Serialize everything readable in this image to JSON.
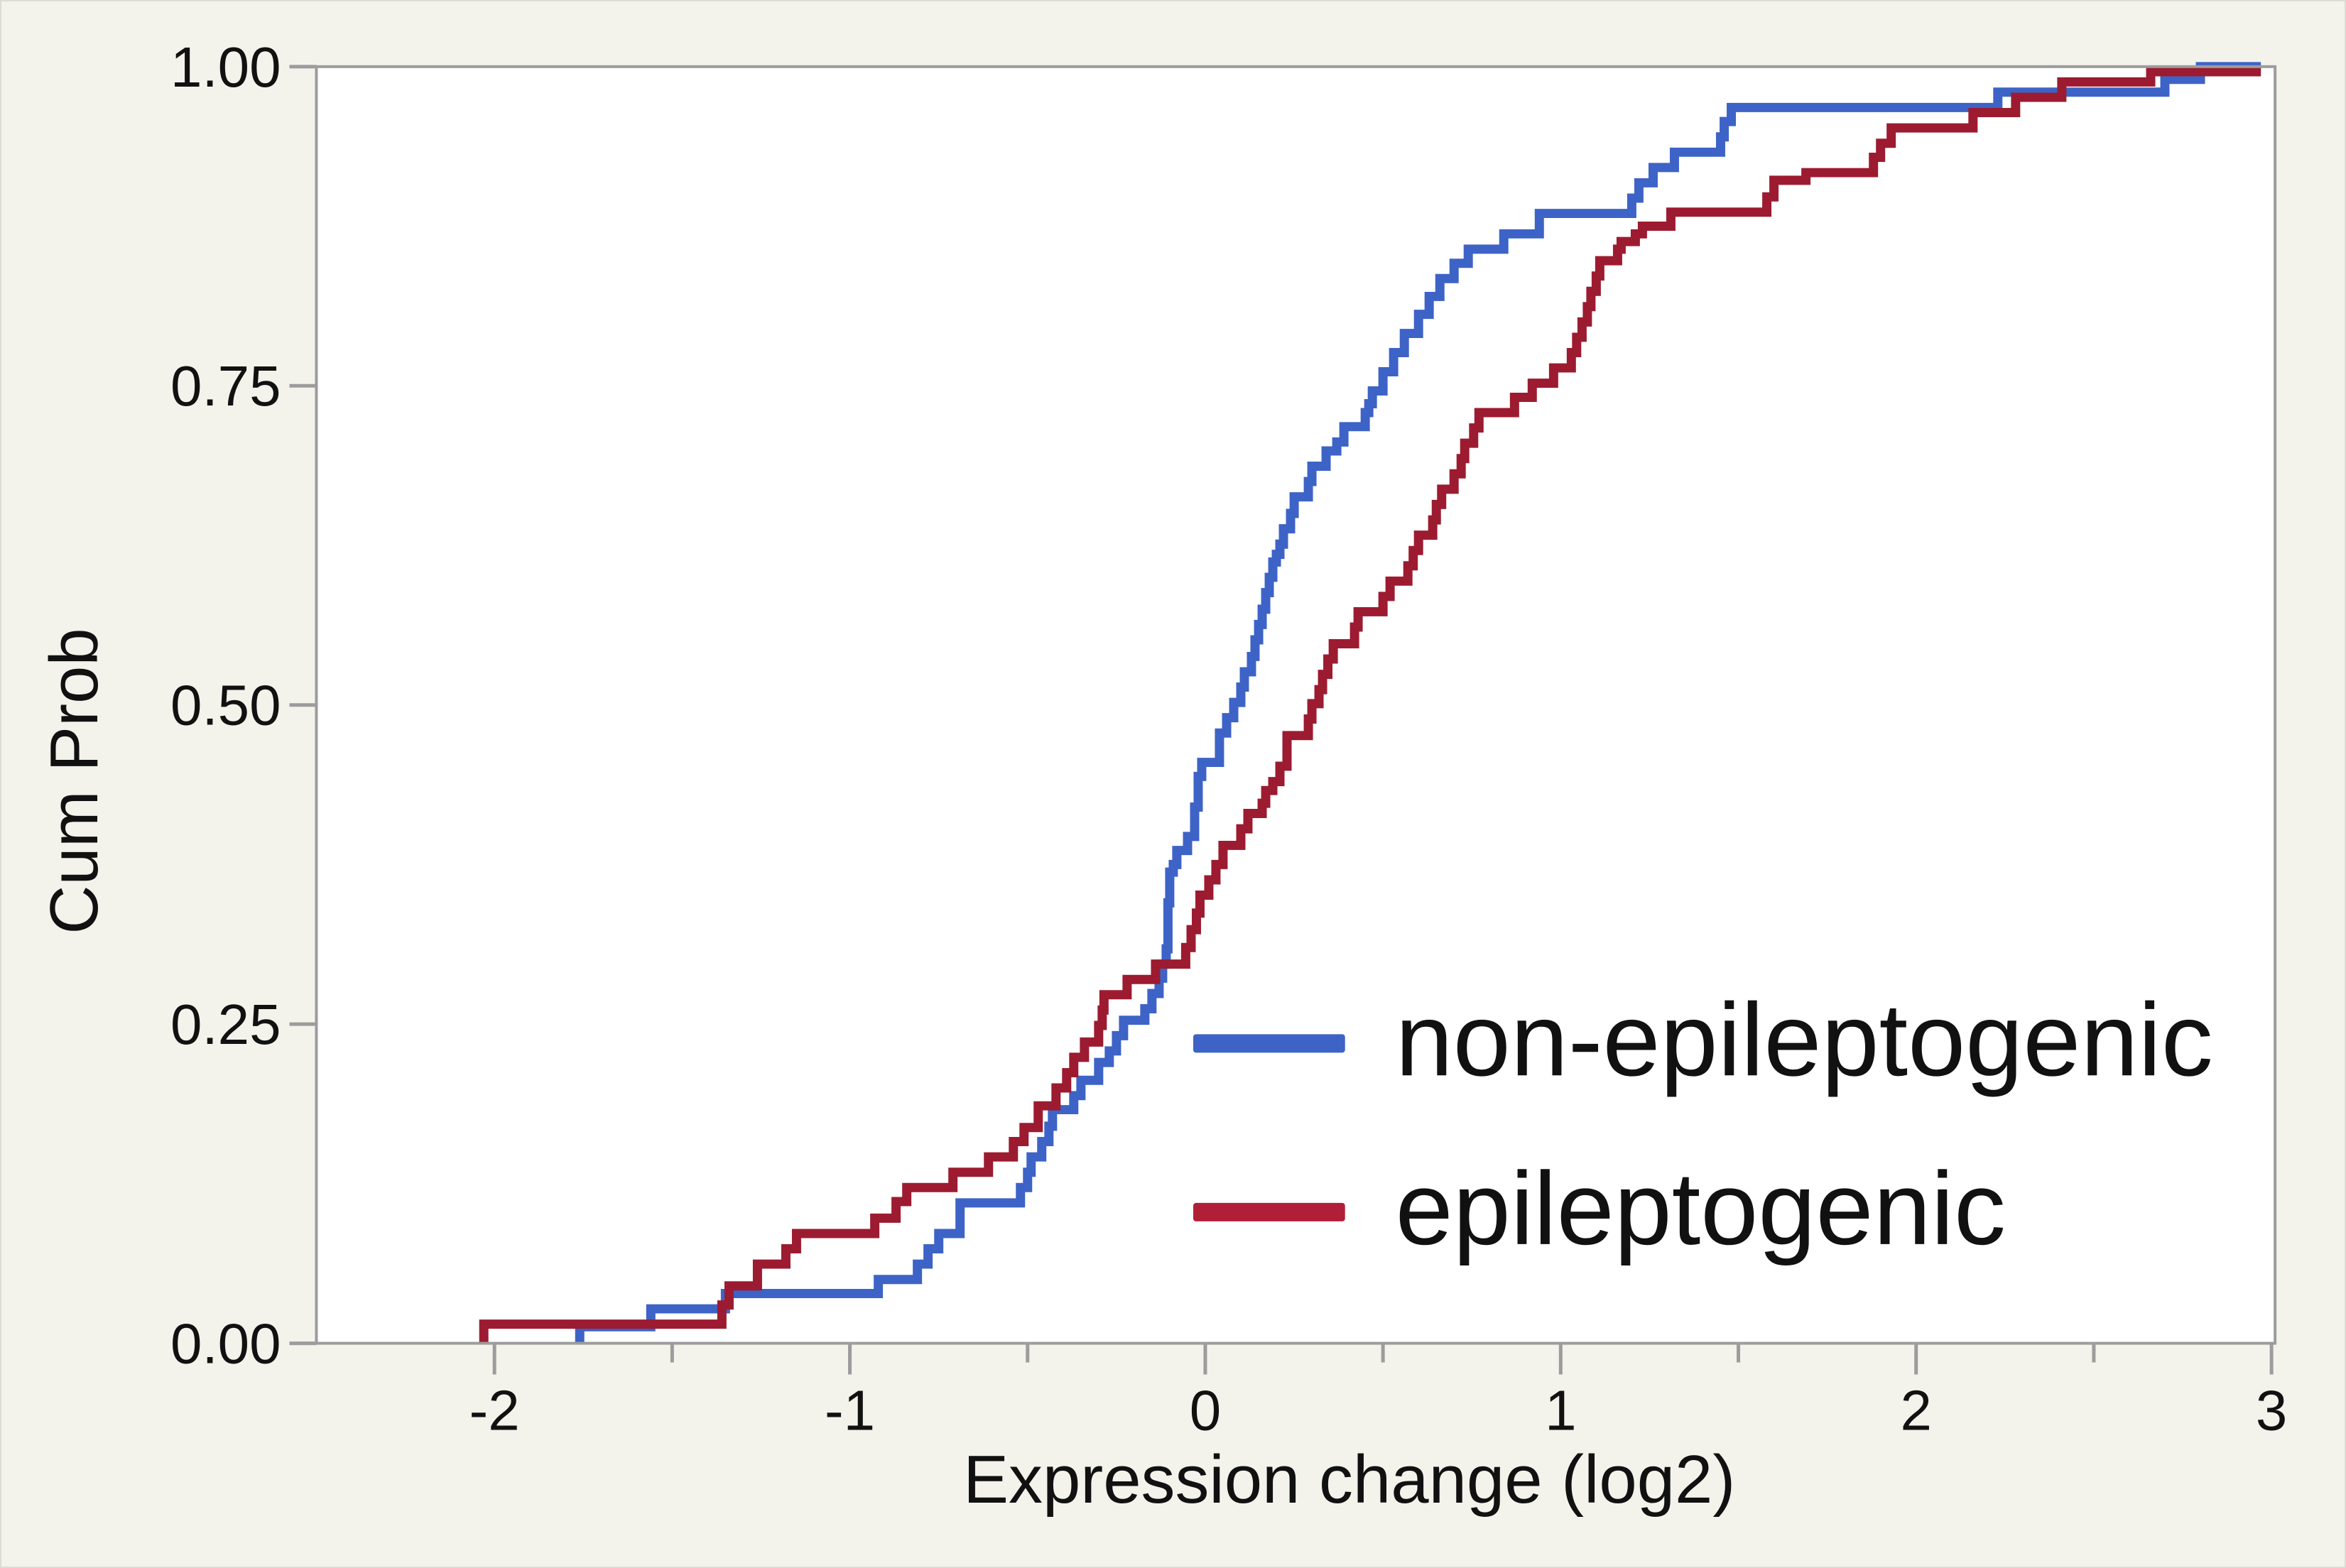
{
  "window": {
    "background": "#F3F3EC",
    "plot_background": "#FFFFFF",
    "frame_color": "#9C9C9C",
    "text_color": "#111111"
  },
  "chart_data": {
    "type": "line",
    "subtype": "step_ecdf",
    "title": "",
    "xlabel": "Expression change (log2)",
    "ylabel": "Cum Prob",
    "xlim": [
      -2.5,
      3.01
    ],
    "ylim": [
      0,
      1
    ],
    "grid": false,
    "legend_position": "inside-lower-right",
    "x_major_ticks": {
      "values": [
        -2,
        -1,
        0,
        1,
        2,
        3
      ],
      "labels": [
        "-2",
        "-1",
        "0",
        "1",
        "2",
        "3"
      ]
    },
    "x_minor_ticks": [
      -1.5,
      -0.5,
      0.5,
      1.5,
      2.5
    ],
    "y_ticks": {
      "values": [
        0,
        0.25,
        0.5,
        0.75,
        1
      ],
      "labels": [
        "0.00",
        "0.25",
        "0.50",
        "0.75",
        "1.00"
      ]
    },
    "legend": [
      {
        "label": "non-epileptogenic",
        "color": "#3D63C7"
      },
      {
        "label": "epileptogenic",
        "color": "#B01F37"
      }
    ],
    "series": [
      {
        "name": "non-epileptogenic",
        "color": "#3D63C7",
        "points": [
          [
            -1.76,
            0.013
          ],
          [
            -1.56,
            0.027
          ],
          [
            -1.35,
            0.039
          ],
          [
            -0.92,
            0.05
          ],
          [
            -0.81,
            0.062
          ],
          [
            -0.78,
            0.074
          ],
          [
            -0.75,
            0.086
          ],
          [
            -0.69,
            0.11
          ],
          [
            -0.52,
            0.122
          ],
          [
            -0.5,
            0.134
          ],
          [
            -0.49,
            0.146
          ],
          [
            -0.46,
            0.158
          ],
          [
            -0.44,
            0.17
          ],
          [
            -0.43,
            0.183
          ],
          [
            -0.37,
            0.194
          ],
          [
            -0.35,
            0.206
          ],
          [
            -0.3,
            0.22
          ],
          [
            -0.27,
            0.229
          ],
          [
            -0.25,
            0.241
          ],
          [
            -0.23,
            0.253
          ],
          [
            -0.17,
            0.262
          ],
          [
            -0.15,
            0.274
          ],
          [
            -0.13,
            0.286
          ],
          [
            -0.12,
            0.297
          ],
          [
            -0.11,
            0.309
          ],
          [
            -0.105,
            0.345
          ],
          [
            -0.1,
            0.369
          ],
          [
            -0.09,
            0.375
          ],
          [
            -0.08,
            0.386
          ],
          [
            -0.05,
            0.397
          ],
          [
            -0.03,
            0.42
          ],
          [
            -0.02,
            0.444
          ],
          [
            -0.01,
            0.455
          ],
          [
            0.04,
            0.478
          ],
          [
            0.06,
            0.49
          ],
          [
            0.08,
            0.502
          ],
          [
            0.1,
            0.514
          ],
          [
            0.11,
            0.526
          ],
          [
            0.13,
            0.538
          ],
          [
            0.14,
            0.551
          ],
          [
            0.15,
            0.563
          ],
          [
            0.16,
            0.575
          ],
          [
            0.17,
            0.588
          ],
          [
            0.18,
            0.6
          ],
          [
            0.19,
            0.612
          ],
          [
            0.2,
            0.618
          ],
          [
            0.21,
            0.626
          ],
          [
            0.22,
            0.638
          ],
          [
            0.24,
            0.65
          ],
          [
            0.25,
            0.663
          ],
          [
            0.29,
            0.675
          ],
          [
            0.3,
            0.687
          ],
          [
            0.34,
            0.699
          ],
          [
            0.37,
            0.706
          ],
          [
            0.39,
            0.718
          ],
          [
            0.45,
            0.729
          ],
          [
            0.46,
            0.736
          ],
          [
            0.47,
            0.746
          ],
          [
            0.5,
            0.761
          ],
          [
            0.53,
            0.776
          ],
          [
            0.56,
            0.791
          ],
          [
            0.6,
            0.806
          ],
          [
            0.63,
            0.82
          ],
          [
            0.66,
            0.834
          ],
          [
            0.7,
            0.846
          ],
          [
            0.74,
            0.857
          ],
          [
            0.84,
            0.869
          ],
          [
            0.94,
            0.885
          ],
          [
            1.2,
            0.897
          ],
          [
            1.22,
            0.909
          ],
          [
            1.26,
            0.921
          ],
          [
            1.32,
            0.933
          ],
          [
            1.45,
            0.945
          ],
          [
            1.46,
            0.957
          ],
          [
            1.48,
            0.968
          ],
          [
            2.23,
            0.98
          ],
          [
            2.7,
            0.99
          ],
          [
            2.8,
            1.0
          ]
        ]
      },
      {
        "name": "epileptogenic",
        "color": "#9C1B30",
        "points": [
          [
            -2.03,
            0.015
          ],
          [
            -1.36,
            0.03
          ],
          [
            -1.34,
            0.045
          ],
          [
            -1.26,
            0.062
          ],
          [
            -1.18,
            0.074
          ],
          [
            -1.15,
            0.086
          ],
          [
            -0.93,
            0.098
          ],
          [
            -0.87,
            0.111
          ],
          [
            -0.84,
            0.122
          ],
          [
            -0.71,
            0.134
          ],
          [
            -0.61,
            0.146
          ],
          [
            -0.54,
            0.158
          ],
          [
            -0.51,
            0.169
          ],
          [
            -0.47,
            0.186
          ],
          [
            -0.42,
            0.2
          ],
          [
            -0.39,
            0.212
          ],
          [
            -0.37,
            0.224
          ],
          [
            -0.34,
            0.236
          ],
          [
            -0.3,
            0.249
          ],
          [
            -0.29,
            0.261
          ],
          [
            -0.285,
            0.273
          ],
          [
            -0.22,
            0.285
          ],
          [
            -0.14,
            0.297
          ],
          [
            -0.055,
            0.31
          ],
          [
            -0.04,
            0.324
          ],
          [
            -0.025,
            0.337
          ],
          [
            -0.015,
            0.351
          ],
          [
            0.01,
            0.363
          ],
          [
            0.03,
            0.375
          ],
          [
            0.05,
            0.39
          ],
          [
            0.1,
            0.403
          ],
          [
            0.12,
            0.415
          ],
          [
            0.16,
            0.423
          ],
          [
            0.17,
            0.433
          ],
          [
            0.19,
            0.44
          ],
          [
            0.21,
            0.452
          ],
          [
            0.23,
            0.476
          ],
          [
            0.29,
            0.489
          ],
          [
            0.3,
            0.501
          ],
          [
            0.32,
            0.512
          ],
          [
            0.33,
            0.524
          ],
          [
            0.345,
            0.536
          ],
          [
            0.36,
            0.548
          ],
          [
            0.42,
            0.561
          ],
          [
            0.43,
            0.573
          ],
          [
            0.5,
            0.585
          ],
          [
            0.52,
            0.597
          ],
          [
            0.57,
            0.609
          ],
          [
            0.585,
            0.621
          ],
          [
            0.6,
            0.633
          ],
          [
            0.64,
            0.645
          ],
          [
            0.65,
            0.657
          ],
          [
            0.665,
            0.669
          ],
          [
            0.7,
            0.681
          ],
          [
            0.72,
            0.693
          ],
          [
            0.73,
            0.705
          ],
          [
            0.755,
            0.717
          ],
          [
            0.77,
            0.729
          ],
          [
            0.87,
            0.741
          ],
          [
            0.92,
            0.752
          ],
          [
            0.98,
            0.764
          ],
          [
            1.03,
            0.776
          ],
          [
            1.045,
            0.788
          ],
          [
            1.06,
            0.8
          ],
          [
            1.075,
            0.812
          ],
          [
            1.085,
            0.824
          ],
          [
            1.1,
            0.836
          ],
          [
            1.11,
            0.848
          ],
          [
            1.16,
            0.857
          ],
          [
            1.17,
            0.863
          ],
          [
            1.21,
            0.869
          ],
          [
            1.23,
            0.875
          ],
          [
            1.31,
            0.886
          ],
          [
            1.58,
            0.898
          ],
          [
            1.6,
            0.911
          ],
          [
            1.69,
            0.917
          ],
          [
            1.88,
            0.929
          ],
          [
            1.9,
            0.94
          ],
          [
            1.93,
            0.952
          ],
          [
            2.16,
            0.964
          ],
          [
            2.28,
            0.976
          ],
          [
            2.41,
            0.988
          ],
          [
            2.66,
            0.996
          ]
        ]
      }
    ]
  }
}
